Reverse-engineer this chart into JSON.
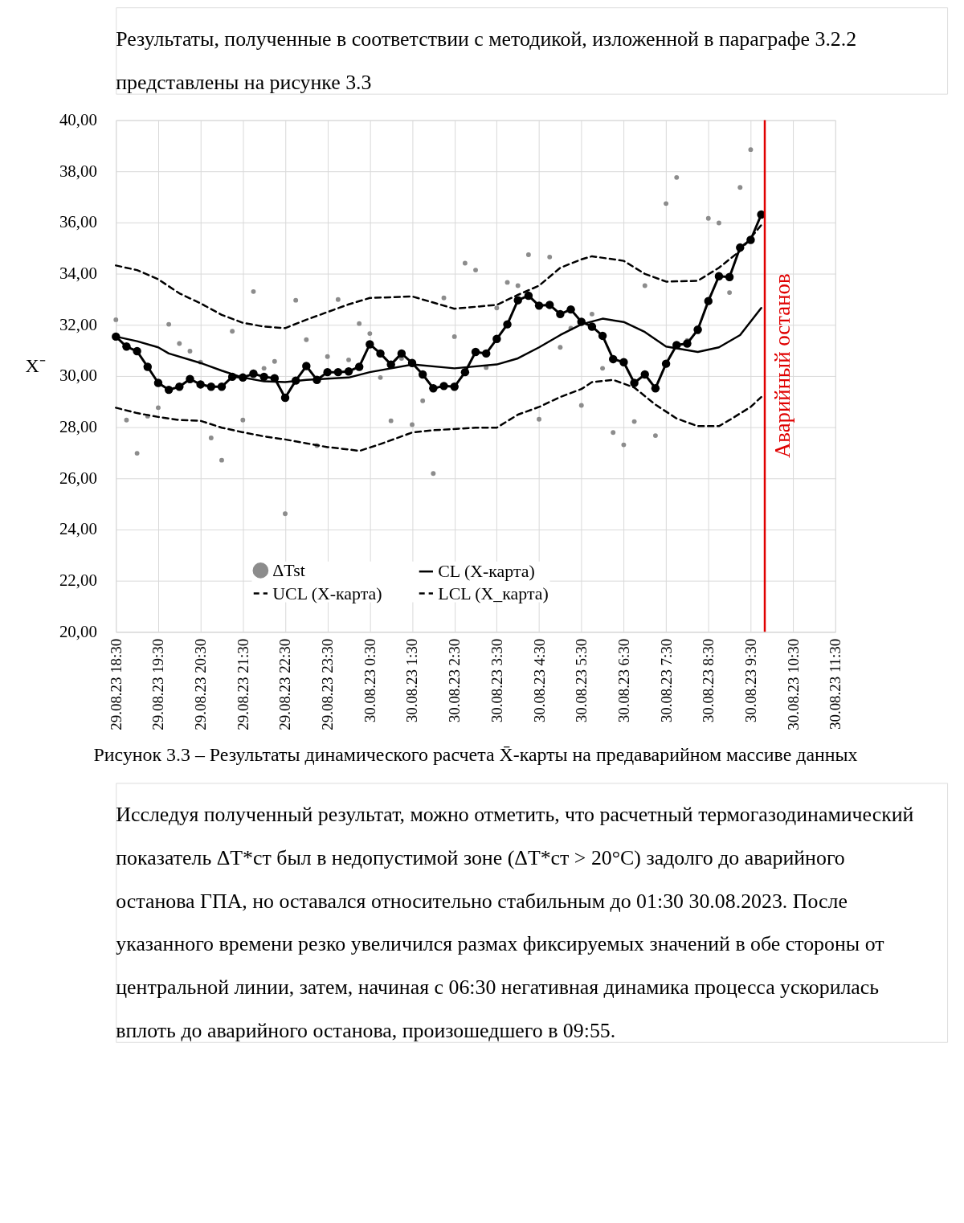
{
  "chart_data": {
    "type": "line",
    "title": "Рисунок 3.3 – Результаты динамического расчета X̄-карты на предаварийном массиве данных",
    "ylabel": "X⁻",
    "annotations": [
      "Результаты, полученные в соответствии с методикой, изложенной в параграфе 3.2.2 представлены на рисунке 3.3",
      "Исследуя полученный результат, можно отметить, что расчетный термогазодинамический показатель ΔT*ст был в недопустимой зоне (ΔT*ст > 20°C) задолго до аварийного останова ГПА, но оставался относительно стабильным до 01:30 30.08.2023. После указанного времени резко увеличился размах фиксируемых значений в обе стороны от центральной линии, затем, начиная с 06:30 негативная динамика процесса ускорилась вплоть до аварийного останова, произошедшего в 09:55."
    ],
    "x": [
      "2023-08-29T18:30",
      "2023-08-29T18:45",
      "2023-08-29T19:00",
      "2023-08-29T19:15",
      "2023-08-29T19:30",
      "2023-08-29T19:45",
      "2023-08-29T20:00",
      "2023-08-29T20:15",
      "2023-08-29T20:30",
      "2023-08-29T20:45",
      "2023-08-29T21:00",
      "2023-08-29T21:15",
      "2023-08-29T21:30",
      "2023-08-29T21:45",
      "2023-08-29T22:00",
      "2023-08-29T22:15",
      "2023-08-29T22:30",
      "2023-08-29T22:45",
      "2023-08-29T23:00",
      "2023-08-29T23:15",
      "2023-08-29T23:30",
      "2023-08-29T23:45",
      "2023-08-30T00:00",
      "2023-08-30T00:15",
      "2023-08-30T00:30",
      "2023-08-30T00:45",
      "2023-08-30T01:00",
      "2023-08-30T01:15",
      "2023-08-30T01:30",
      "2023-08-30T01:45",
      "2023-08-30T02:00",
      "2023-08-30T02:15",
      "2023-08-30T02:30",
      "2023-08-30T02:45",
      "2023-08-30T03:00",
      "2023-08-30T03:15",
      "2023-08-30T03:30",
      "2023-08-30T03:45",
      "2023-08-30T04:00",
      "2023-08-30T04:15",
      "2023-08-30T04:30",
      "2023-08-30T04:45",
      "2023-08-30T05:00",
      "2023-08-30T05:15",
      "2023-08-30T05:30",
      "2023-08-30T05:45",
      "2023-08-30T06:00",
      "2023-08-30T06:15",
      "2023-08-30T06:30",
      "2023-08-30T06:45",
      "2023-08-30T07:00",
      "2023-08-30T07:15",
      "2023-08-30T07:30",
      "2023-08-30T07:45",
      "2023-08-30T08:00",
      "2023-08-30T08:15",
      "2023-08-30T08:30",
      "2023-08-30T08:45",
      "2023-08-30T09:00",
      "2023-08-30T09:15",
      "2023-08-30T09:30",
      "2023-08-30T09:45"
    ],
    "series": [
      {
        "name": "ΔTst",
        "type": "scatter",
        "color": "#8c8c8c",
        "marker": "circle",
        "values": [
          32.2,
          28.28,
          26.98,
          28.43,
          28.76,
          32.02,
          31.27,
          30.97,
          30.54,
          27.58,
          26.71,
          31.75,
          28.28,
          33.3,
          30.3,
          30.57,
          24.62,
          32.96,
          31.42,
          27.28,
          30.76,
          32.99,
          30.63,
          32.05,
          31.66,
          29.94,
          28.25,
          30.69,
          28.1,
          29.03,
          26.19,
          33.05,
          31.54,
          34.41,
          34.14,
          30.33,
          32.66,
          33.66,
          33.53,
          34.74,
          28.31,
          34.65,
          31.12,
          31.87,
          28.85,
          32.42,
          30.3,
          27.79,
          27.31,
          28.22,
          33.53,
          27.67,
          36.74,
          37.76,
          31.39,
          31.72,
          36.16,
          35.98,
          33.26,
          37.37,
          38.85,
          null
        ]
      },
      {
        "type": "line",
        "color": "#000000",
        "marker": "circle",
        "line_style": "solid",
        "values": [
          31.54,
          31.15,
          30.97,
          30.36,
          29.73,
          29.46,
          29.58,
          29.88,
          29.67,
          29.58,
          29.58,
          29.97,
          29.94,
          30.09,
          29.97,
          29.91,
          29.15,
          29.82,
          30.39,
          29.85,
          30.15,
          30.15,
          30.18,
          30.36,
          31.24,
          30.88,
          30.45,
          30.88,
          30.51,
          30.06,
          29.52,
          29.61,
          29.58,
          30.15,
          30.94,
          30.88,
          31.45,
          32.02,
          32.96,
          33.14,
          32.75,
          32.78,
          32.42,
          32.6,
          32.12,
          31.93,
          31.57,
          30.66,
          30.54,
          29.73,
          30.06,
          29.52,
          30.48,
          31.21,
          31.27,
          31.81,
          32.93,
          33.9,
          33.87,
          35.02,
          35.32,
          36.31
        ]
      },
      {
        "name": "CL (X-карта)",
        "type": "line",
        "color": "#000000",
        "marker": "none",
        "line_style": "solid",
        "x": [
          "2023-08-29T18:30",
          "2023-08-29T19:00",
          "2023-08-29T19:30",
          "2023-08-29T19:45",
          "2023-08-29T20:30",
          "2023-08-29T21:00",
          "2023-08-29T21:30",
          "2023-08-29T22:00",
          "2023-08-29T22:30",
          "2023-08-29T23:00",
          "2023-08-30T00:00",
          "2023-08-30T00:30",
          "2023-08-30T01:30",
          "2023-08-30T02:30",
          "2023-08-30T03:30",
          "2023-08-30T04:00",
          "2023-08-30T04:30",
          "2023-08-30T05:00",
          "2023-08-30T05:30",
          "2023-08-30T06:00",
          "2023-08-30T06:30",
          "2023-08-30T07:00",
          "2023-08-30T07:30",
          "2023-08-30T08:15",
          "2023-08-30T08:45",
          "2023-08-30T09:15",
          "2023-08-30T09:45"
        ],
        "values": [
          31.54,
          31.36,
          31.12,
          30.88,
          30.51,
          30.21,
          29.94,
          29.79,
          29.76,
          29.85,
          29.94,
          30.15,
          30.45,
          30.3,
          30.45,
          30.69,
          31.12,
          31.6,
          32.02,
          32.24,
          32.11,
          31.72,
          31.15,
          30.94,
          31.12,
          31.6,
          32.66
        ]
      },
      {
        "name": "UCL (X-карта)",
        "type": "line",
        "color": "#000000",
        "marker": "none",
        "line_style": "dashed",
        "x": [
          "2023-08-29T18:30",
          "2023-08-29T19:00",
          "2023-08-29T19:30",
          "2023-08-29T20:00",
          "2023-08-29T20:30",
          "2023-08-29T21:00",
          "2023-08-29T21:30",
          "2023-08-29T22:00",
          "2023-08-29T22:30",
          "2023-08-29T23:00",
          "2023-08-29T23:30",
          "2023-08-30T00:00",
          "2023-08-30T00:30",
          "2023-08-30T01:30",
          "2023-08-30T02:00",
          "2023-08-30T02:30",
          "2023-08-30T03:30",
          "2023-08-30T04:00",
          "2023-08-30T04:30",
          "2023-08-30T05:00",
          "2023-08-30T05:30",
          "2023-08-30T05:45",
          "2023-08-30T06:30",
          "2023-08-30T07:00",
          "2023-08-30T07:30",
          "2023-08-30T08:15",
          "2023-08-30T08:45",
          "2023-08-30T09:15",
          "2023-08-30T09:45"
        ],
        "values": [
          34.32,
          34.14,
          33.78,
          33.23,
          32.84,
          32.39,
          32.08,
          31.93,
          31.87,
          32.2,
          32.5,
          32.8,
          33.05,
          33.11,
          32.87,
          32.63,
          32.78,
          33.17,
          33.53,
          34.23,
          34.56,
          34.68,
          34.5,
          33.99,
          33.69,
          33.72,
          34.23,
          34.89,
          35.9
        ]
      },
      {
        "name": "LCL (X_карта)",
        "type": "line",
        "color": "#000000",
        "marker": "none",
        "line_style": "dashed",
        "x": [
          "2023-08-29T18:30",
          "2023-08-29T19:00",
          "2023-08-29T19:30",
          "2023-08-29T20:00",
          "2023-08-29T20:30",
          "2023-08-29T21:00",
          "2023-08-29T21:30",
          "2023-08-29T22:00",
          "2023-08-29T22:30",
          "2023-08-29T23:00",
          "2023-08-29T23:30",
          "2023-08-30T00:00",
          "2023-08-30T00:15",
          "2023-08-30T00:45",
          "2023-08-30T01:30",
          "2023-08-30T02:00",
          "2023-08-30T03:00",
          "2023-08-30T03:30",
          "2023-08-30T04:00",
          "2023-08-30T04:30",
          "2023-08-30T05:00",
          "2023-08-30T05:30",
          "2023-08-30T05:45",
          "2023-08-30T06:15",
          "2023-08-30T06:45",
          "2023-08-30T07:15",
          "2023-08-30T07:45",
          "2023-08-30T08:15",
          "2023-08-30T08:45",
          "2023-08-30T09:00",
          "2023-08-30T09:30",
          "2023-08-30T09:45"
        ],
        "values": [
          28.76,
          28.55,
          28.4,
          28.28,
          28.25,
          27.98,
          27.8,
          27.64,
          27.52,
          27.37,
          27.22,
          27.13,
          27.07,
          27.34,
          27.79,
          27.88,
          27.98,
          27.98,
          28.49,
          28.79,
          29.18,
          29.49,
          29.76,
          29.85,
          29.55,
          28.88,
          28.34,
          28.04,
          28.04,
          28.28,
          28.79,
          29.18
        ]
      }
    ],
    "xlim": [
      "2023-08-29T18:30",
      "2023-08-30T11:30"
    ],
    "xticks": [
      {
        "value": "2023-08-29T18:30",
        "label": "29.08.23 18:30"
      },
      {
        "value": "2023-08-29T19:30",
        "label": "29.08.23 19:30"
      },
      {
        "value": "2023-08-29T20:30",
        "label": "29.08.23 20:30"
      },
      {
        "value": "2023-08-29T21:30",
        "label": "29.08.23 21:30"
      },
      {
        "value": "2023-08-29T22:30",
        "label": "29.08.23 22:30"
      },
      {
        "value": "2023-08-29T23:30",
        "label": "29.08.23 23:30"
      },
      {
        "value": "2023-08-30T00:30",
        "label": "30.08.23 0:30"
      },
      {
        "value": "2023-08-30T01:30",
        "label": "30.08.23 1:30"
      },
      {
        "value": "2023-08-30T02:30",
        "label": "30.08.23 2:30"
      },
      {
        "value": "2023-08-30T03:30",
        "label": "30.08.23 3:30"
      },
      {
        "value": "2023-08-30T04:30",
        "label": "30.08.23 4:30"
      },
      {
        "value": "2023-08-30T05:30",
        "label": "30.08.23 5:30"
      },
      {
        "value": "2023-08-30T06:30",
        "label": "30.08.23 6:30"
      },
      {
        "value": "2023-08-30T07:30",
        "label": "30.08.23 7:30"
      },
      {
        "value": "2023-08-30T08:30",
        "label": "30.08.23 8:30"
      },
      {
        "value": "2023-08-30T09:30",
        "label": "30.08.23 9:30"
      },
      {
        "value": "2023-08-30T10:30",
        "label": "30.08.23 10:30"
      },
      {
        "value": "2023-08-30T11:30",
        "label": "30.08.23 11:30"
      }
    ],
    "ylim": [
      20,
      40
    ],
    "yticks": [
      {
        "value": 20,
        "label": "20,00"
      },
      {
        "value": 22,
        "label": "22,00"
      },
      {
        "value": 24,
        "label": "24,00"
      },
      {
        "value": 26,
        "label": "26,00"
      },
      {
        "value": 28,
        "label": "28,00"
      },
      {
        "value": 30,
        "label": "30,00"
      },
      {
        "value": 32,
        "label": "32,00"
      },
      {
        "value": 34,
        "label": "34,00"
      },
      {
        "value": 36,
        "label": "36,00"
      },
      {
        "value": 38,
        "label": "38,00"
      },
      {
        "value": 40,
        "label": "40,00"
      }
    ],
    "ref_lines": [
      {
        "axis": "x",
        "value": "2023-08-30T09:50",
        "label": "Аварийный останов",
        "color": "#e00000"
      }
    ],
    "grid": true,
    "legend": "bottom"
  }
}
